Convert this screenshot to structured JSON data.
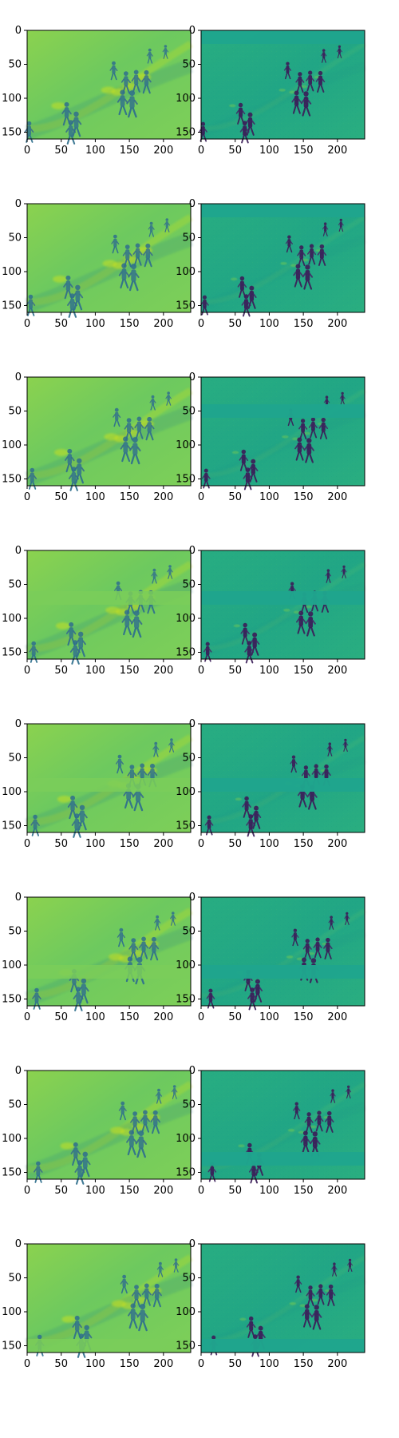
{
  "figure": {
    "layout": {
      "rows": 8,
      "cols": 2
    },
    "colormap": "viridis",
    "palette": {
      "left_background": "#7ccf5a",
      "right_background": "#23a884",
      "dark_blue": "#2d6f8e",
      "deep_purple": "#3b1e59",
      "yellow_highlight": "#c7e020"
    }
  },
  "chart_data": [
    {
      "type": "heatmap",
      "panel": "left",
      "row": 1,
      "xlim": [
        0,
        240
      ],
      "ylim": [
        160,
        0
      ],
      "xticks": [
        0,
        50,
        100,
        150,
        200
      ],
      "yticks": [
        0,
        50,
        100,
        150
      ],
      "image_size": [
        240,
        160
      ],
      "frame_offset": 0,
      "missing_band": null
    },
    {
      "type": "heatmap",
      "panel": "right",
      "row": 1,
      "xlim": [
        0,
        240
      ],
      "ylim": [
        160,
        0
      ],
      "xticks": [
        0,
        50,
        100,
        150,
        200
      ],
      "yticks": [
        0,
        50,
        100,
        150
      ],
      "image_size": [
        240,
        160
      ],
      "frame_offset": 0,
      "missing_band": [
        0,
        20
      ]
    },
    {
      "type": "heatmap",
      "panel": "left",
      "row": 2,
      "xlim": [
        0,
        240
      ],
      "ylim": [
        160,
        0
      ],
      "xticks": [
        0,
        50,
        100,
        150,
        200
      ],
      "yticks": [
        0,
        50,
        100,
        150
      ],
      "image_size": [
        240,
        160
      ],
      "frame_offset": 1,
      "missing_band": null
    },
    {
      "type": "heatmap",
      "panel": "right",
      "row": 2,
      "xlim": [
        0,
        240
      ],
      "ylim": [
        160,
        0
      ],
      "xticks": [
        0,
        50,
        100,
        150,
        200
      ],
      "yticks": [
        0,
        50,
        100,
        150
      ],
      "image_size": [
        240,
        160
      ],
      "frame_offset": 1,
      "missing_band": [
        0,
        20
      ]
    },
    {
      "type": "heatmap",
      "panel": "left",
      "row": 3,
      "xlim": [
        0,
        240
      ],
      "ylim": [
        160,
        0
      ],
      "xticks": [
        0,
        50,
        100,
        150,
        200
      ],
      "yticks": [
        0,
        50,
        100,
        150
      ],
      "image_size": [
        240,
        160
      ],
      "frame_offset": 2,
      "missing_band": null
    },
    {
      "type": "heatmap",
      "panel": "right",
      "row": 3,
      "xlim": [
        0,
        240
      ],
      "ylim": [
        160,
        0
      ],
      "xticks": [
        0,
        50,
        100,
        150,
        200
      ],
      "yticks": [
        0,
        50,
        100,
        150
      ],
      "image_size": [
        240,
        160
      ],
      "frame_offset": 2,
      "missing_band": [
        40,
        60
      ]
    },
    {
      "type": "heatmap",
      "panel": "left",
      "row": 4,
      "xlim": [
        0,
        240
      ],
      "ylim": [
        160,
        0
      ],
      "xticks": [
        0,
        50,
        100,
        150,
        200
      ],
      "yticks": [
        0,
        50,
        100,
        150
      ],
      "image_size": [
        240,
        160
      ],
      "frame_offset": 3,
      "missing_band": [
        60,
        80
      ]
    },
    {
      "type": "heatmap",
      "panel": "right",
      "row": 4,
      "xlim": [
        0,
        240
      ],
      "ylim": [
        160,
        0
      ],
      "xticks": [
        0,
        50,
        100,
        150,
        200
      ],
      "yticks": [
        0,
        50,
        100,
        150
      ],
      "image_size": [
        240,
        160
      ],
      "frame_offset": 3,
      "missing_band": [
        60,
        80
      ]
    },
    {
      "type": "heatmap",
      "panel": "left",
      "row": 5,
      "xlim": [
        0,
        240
      ],
      "ylim": [
        160,
        0
      ],
      "xticks": [
        0,
        50,
        100,
        150,
        200
      ],
      "yticks": [
        0,
        50,
        100,
        150
      ],
      "image_size": [
        240,
        160
      ],
      "frame_offset": 4,
      "missing_band": [
        80,
        100
      ]
    },
    {
      "type": "heatmap",
      "panel": "right",
      "row": 5,
      "xlim": [
        0,
        240
      ],
      "ylim": [
        160,
        0
      ],
      "xticks": [
        0,
        50,
        100,
        150,
        200
      ],
      "yticks": [
        0,
        50,
        100,
        150
      ],
      "image_size": [
        240,
        160
      ],
      "frame_offset": 4,
      "missing_band": [
        80,
        100
      ]
    },
    {
      "type": "heatmap",
      "panel": "left",
      "row": 6,
      "xlim": [
        0,
        240
      ],
      "ylim": [
        160,
        0
      ],
      "xticks": [
        0,
        50,
        100,
        150,
        200
      ],
      "yticks": [
        0,
        50,
        100,
        150
      ],
      "image_size": [
        240,
        160
      ],
      "frame_offset": 5,
      "missing_band": [
        100,
        120
      ]
    },
    {
      "type": "heatmap",
      "panel": "right",
      "row": 6,
      "xlim": [
        0,
        240
      ],
      "ylim": [
        160,
        0
      ],
      "xticks": [
        0,
        50,
        100,
        150,
        200
      ],
      "yticks": [
        0,
        50,
        100,
        150
      ],
      "image_size": [
        240,
        160
      ],
      "frame_offset": 5,
      "missing_band": [
        100,
        120
      ]
    },
    {
      "type": "heatmap",
      "panel": "left",
      "row": 7,
      "xlim": [
        0,
        240
      ],
      "ylim": [
        160,
        0
      ],
      "xticks": [
        0,
        50,
        100,
        150,
        200
      ],
      "yticks": [
        0,
        50,
        100,
        150
      ],
      "image_size": [
        240,
        160
      ],
      "frame_offset": 6,
      "missing_band": null
    },
    {
      "type": "heatmap",
      "panel": "right",
      "row": 7,
      "xlim": [
        0,
        240
      ],
      "ylim": [
        160,
        0
      ],
      "xticks": [
        0,
        50,
        100,
        150,
        200
      ],
      "yticks": [
        0,
        50,
        100,
        150
      ],
      "image_size": [
        240,
        160
      ],
      "frame_offset": 6,
      "missing_band": [
        120,
        140
      ]
    },
    {
      "type": "heatmap",
      "panel": "left",
      "row": 8,
      "xlim": [
        0,
        240
      ],
      "ylim": [
        160,
        0
      ],
      "xticks": [
        0,
        50,
        100,
        150,
        200
      ],
      "yticks": [
        0,
        50,
        100,
        150
      ],
      "image_size": [
        240,
        160
      ],
      "frame_offset": 7,
      "missing_band": [
        140,
        160
      ]
    },
    {
      "type": "heatmap",
      "panel": "right",
      "row": 8,
      "xlim": [
        0,
        240
      ],
      "ylim": [
        160,
        0
      ],
      "xticks": [
        0,
        50,
        100,
        150,
        200
      ],
      "yticks": [
        0,
        50,
        100,
        150
      ],
      "image_size": [
        240,
        160
      ],
      "frame_offset": 7,
      "missing_band": [
        140,
        160
      ]
    }
  ],
  "scene": {
    "walkers": [
      {
        "x": 127,
        "y": 57,
        "size": 1.0
      },
      {
        "x": 145,
        "y": 74,
        "size": 1.2
      },
      {
        "x": 160,
        "y": 72,
        "size": 1.2
      },
      {
        "x": 175,
        "y": 73,
        "size": 1.25
      },
      {
        "x": 140,
        "y": 103,
        "size": 1.35
      },
      {
        "x": 154,
        "y": 105,
        "size": 1.45
      },
      {
        "x": 58,
        "y": 120,
        "size": 1.25
      },
      {
        "x": 72,
        "y": 135,
        "size": 1.35
      },
      {
        "x": 64,
        "y": 147,
        "size": 1.3
      },
      {
        "x": 3,
        "y": 147,
        "size": 1.15
      },
      {
        "x": 180,
        "y": 36,
        "size": 0.8
      },
      {
        "x": 203,
        "y": 30,
        "size": 0.75
      }
    ],
    "bright_streaks": [
      {
        "x": 134,
        "y": 91
      },
      {
        "x": 171,
        "y": 69
      },
      {
        "x": 151,
        "y": 83
      },
      {
        "x": 119,
        "y": 88
      },
      {
        "x": 46,
        "y": 111
      }
    ]
  }
}
